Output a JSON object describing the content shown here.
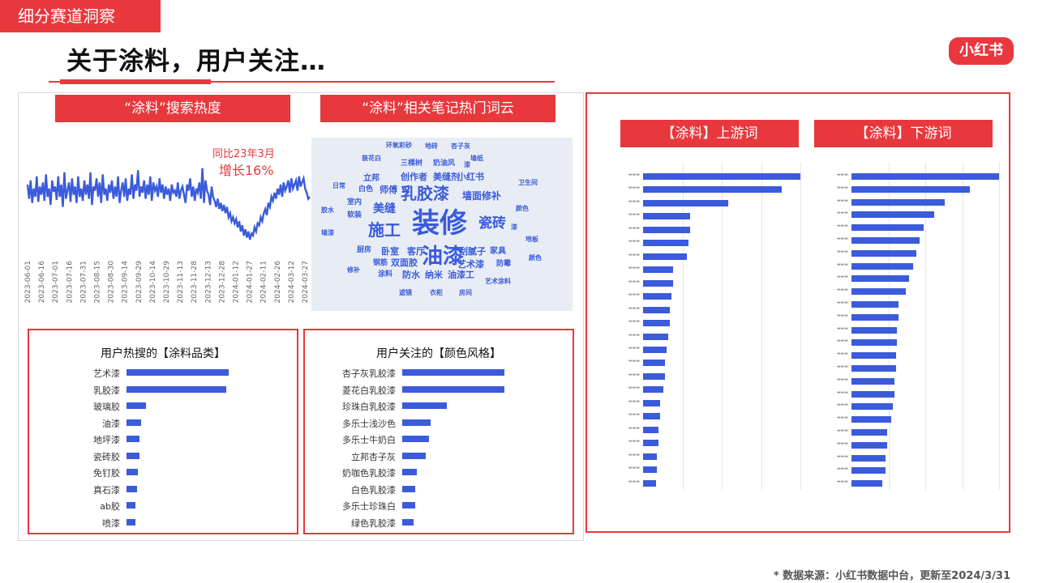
{
  "section_tag": "细分赛道洞察",
  "page_title": "关于涂料，用户关注…",
  "logo_text": "小红书",
  "source_note": "* 数据来源：小红书数据中台，更新至2024/3/31",
  "colors": {
    "accent": "#e8383d",
    "bar": "#3b5bdb"
  },
  "search_heat": {
    "header": "“涂料”搜索热度",
    "annotation_line1": "同比23年3月",
    "annotation_line2": "增长16%",
    "chart_data": {
      "type": "line",
      "x_ticks": [
        "2023-06-01",
        "2023-06-16",
        "2023-07-01",
        "2023-07-16",
        "2023-07-31",
        "2023-08-15",
        "2023-08-30",
        "2023-09-14",
        "2023-09-29",
        "2023-10-14",
        "2023-10-29",
        "2023-11-13",
        "2023-11-28",
        "2023-12-13",
        "2023-12-28",
        "2024-01-12",
        "2024-01-27",
        "2024-02-11",
        "2024-02-26",
        "2024-03-12",
        "2024-03-27"
      ],
      "values": [
        62,
        48,
        66,
        44,
        58,
        50,
        70,
        45,
        60,
        52,
        64,
        46,
        72,
        50,
        58,
        42,
        66,
        55,
        60,
        47,
        70,
        50,
        62,
        40,
        74,
        48,
        56,
        64,
        45,
        68,
        52,
        60,
        44,
        70,
        50,
        58,
        46,
        66,
        52,
        62,
        48,
        74,
        42,
        60,
        56,
        68,
        50,
        64,
        44,
        72,
        52,
        58,
        46,
        62,
        54,
        66,
        48,
        60,
        50,
        70,
        44,
        56,
        64,
        50,
        68,
        46,
        58,
        52,
        72,
        48,
        62,
        56,
        76,
        50,
        60,
        54,
        66,
        48,
        62,
        52,
        70,
        46,
        64,
        56,
        60,
        50,
        68,
        54,
        62,
        48,
        60,
        52,
        58,
        46,
        62,
        54,
        56,
        50,
        64,
        48,
        56,
        60,
        52,
        44,
        62,
        56,
        68,
        50,
        60,
        46,
        58,
        54,
        64,
        48,
        78,
        44,
        66,
        56,
        52,
        42,
        60,
        50,
        46,
        40,
        48,
        38,
        44,
        36,
        42,
        34,
        40,
        30,
        34,
        26,
        30,
        24,
        28,
        20,
        26,
        16,
        22,
        12,
        18,
        10,
        16,
        8,
        14,
        12,
        20,
        16,
        24,
        22,
        30,
        26,
        34,
        38,
        32,
        44,
        40,
        50,
        46,
        54,
        48,
        58,
        52,
        62,
        50,
        64,
        56,
        60,
        66,
        54,
        68,
        58,
        62,
        66,
        56,
        70,
        60,
        64,
        68,
        58,
        54,
        48,
        50
      ],
      "ylim": [
        0,
        100
      ]
    }
  },
  "word_cloud": {
    "header": "“涂料”相关笔记热门词云",
    "words": [
      "环氧彩砂",
      "地砖",
      "杏子灰",
      "墙纸",
      "装花白",
      "三棵树",
      "奶油风",
      "漆",
      "立邦",
      "创作者",
      "美缝剂",
      "小红书",
      "卫生间",
      "日常",
      "白色",
      "师傅",
      "乳胶漆",
      "墙面修补",
      "室内",
      "美缝",
      "颜色",
      "胶水",
      "软装",
      "施工",
      "装修",
      "瓷砖",
      "漆",
      "墙漆",
      "地板",
      "厨房",
      "卧室",
      "客厅",
      "油漆",
      "刮腻子",
      "家具",
      "颜色",
      "钢筋",
      "双面胶",
      "艺术漆",
      "防霉",
      "修补",
      "涂料",
      "防水",
      "纳米",
      "油漆工",
      "艺术涂料",
      "滤镜",
      "衣柜",
      "房间"
    ]
  },
  "upstream": {
    "header": "【涂料】上游词",
    "chart_data": {
      "type": "bar",
      "orientation": "horizontal",
      "values": [
        100,
        88,
        54,
        30,
        30,
        29,
        28,
        19,
        19,
        18,
        17,
        17,
        16,
        15,
        14,
        14,
        13,
        11,
        11,
        10,
        10,
        9,
        9,
        8
      ],
      "xlim": [
        0,
        100
      ]
    }
  },
  "downstream": {
    "header": "【涂料】下游词",
    "chart_data": {
      "type": "bar",
      "orientation": "horizontal",
      "values": [
        100,
        80,
        63,
        56,
        49,
        46,
        44,
        42,
        39,
        37,
        32,
        32,
        31,
        31,
        30,
        30,
        29,
        29,
        28,
        27,
        24,
        24,
        23,
        23,
        21
      ],
      "xlim": [
        0,
        100
      ]
    }
  },
  "categories": {
    "title": "用户热搜的【涂料品类】",
    "chart_data": {
      "type": "bar",
      "orientation": "horizontal",
      "categories": [
        "艺术漆",
        "乳胶漆",
        "玻璃胶",
        "油漆",
        "地坪漆",
        "瓷砖胶",
        "免钉胶",
        "真石漆",
        "ab胶",
        "喷漆"
      ],
      "values": [
        100,
        98,
        19,
        14,
        13,
        13,
        11,
        10,
        9,
        9
      ],
      "xlim": [
        0,
        100
      ]
    }
  },
  "colors_style": {
    "title": "用户关注的【颜色风格】",
    "chart_data": {
      "type": "bar",
      "orientation": "horizontal",
      "categories": [
        "杏子灰乳胶漆",
        "菱花白乳胶漆",
        "珍珠白乳胶漆",
        "多乐士浅沙色",
        "多乐士牛奶白",
        "立邦杏子灰",
        "奶咖色乳胶漆",
        "白色乳胶漆",
        "多乐士珍珠白",
        "绿色乳胶漆"
      ],
      "values": [
        100,
        100,
        44,
        28,
        26,
        23,
        14,
        13,
        13,
        11
      ],
      "xlim": [
        0,
        100
      ]
    }
  }
}
